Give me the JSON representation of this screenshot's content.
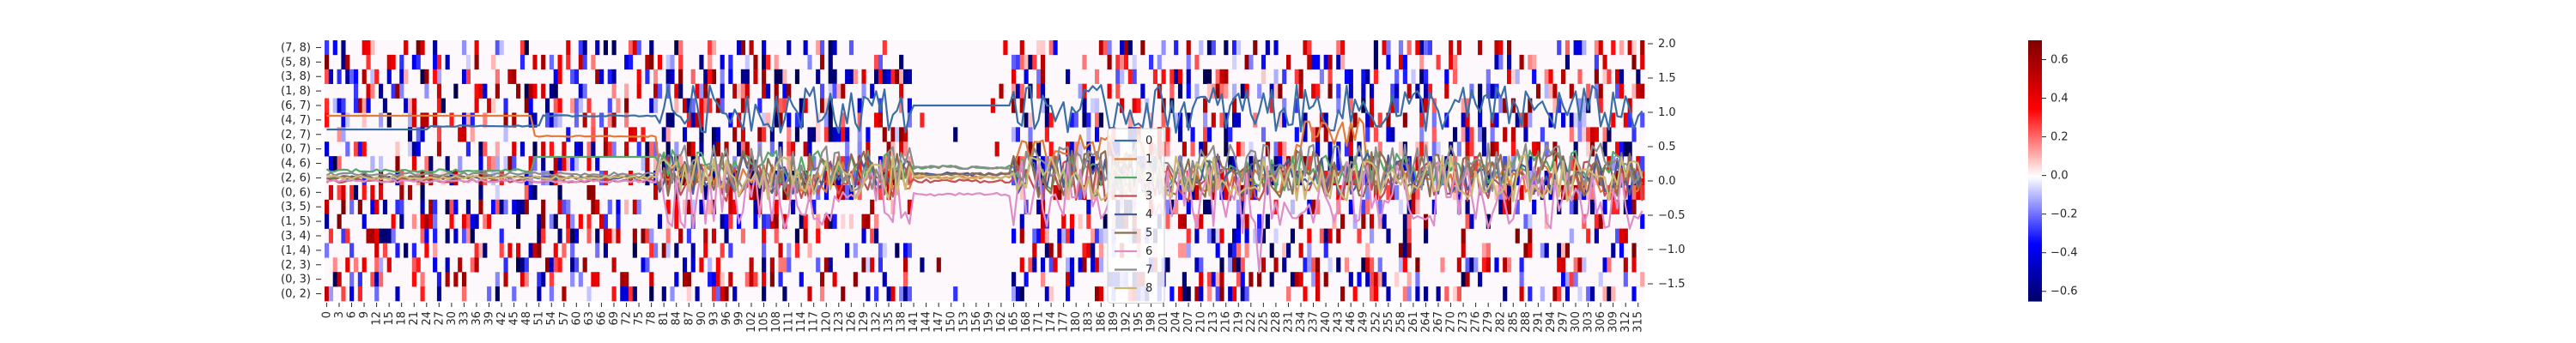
{
  "chart_data": {
    "type": "heatmap",
    "title": "",
    "xlabel": "",
    "ylabel": "",
    "rows": [
      "(7, 8)",
      "(5, 8)",
      "(3, 8)",
      "(1, 8)",
      "(6, 7)",
      "(4, 7)",
      "(2, 7)",
      "(0, 7)",
      "(4, 6)",
      "(2, 6)",
      "(0, 6)",
      "(3, 5)",
      "(1, 5)",
      "(3, 4)",
      "(1, 4)",
      "(2, 3)",
      "(0, 3)",
      "(0, 2)"
    ],
    "x_tick_labels": [
      "0",
      "3",
      "6",
      "9",
      "12",
      "15",
      "18",
      "21",
      "24",
      "27",
      "30",
      "33",
      "36",
      "39",
      "42",
      "45",
      "48",
      "51",
      "54",
      "57",
      "60",
      "63",
      "66",
      "69",
      "72",
      "75",
      "78",
      "81",
      "84",
      "87",
      "90",
      "93",
      "96",
      "99",
      "102",
      "105",
      "108",
      "111",
      "114",
      "117",
      "120",
      "123",
      "126",
      "129",
      "132",
      "135",
      "138",
      "141",
      "144",
      "147",
      "150",
      "153",
      "156",
      "159",
      "162",
      "165",
      "168",
      "171",
      "174",
      "177",
      "180",
      "183",
      "186",
      "189",
      "192",
      "195",
      "198",
      "201",
      "204",
      "207",
      "210",
      "213",
      "216",
      "219",
      "222",
      "225",
      "228",
      "231",
      "234",
      "237",
      "240",
      "243",
      "246",
      "249",
      "252",
      "255",
      "258",
      "261",
      "264",
      "267",
      "270",
      "273",
      "276",
      "279",
      "282",
      "285",
      "288",
      "291",
      "294",
      "297",
      "300",
      "303",
      "306",
      "309",
      "312",
      "315"
    ],
    "n_columns": 317,
    "heat_pattern": {
      "note": "sparse signed values per (row, column); white = 0",
      "columns_with_data": [
        [
          0,
          80
        ],
        [
          85,
          140
        ],
        [
          165,
          245
        ],
        [
          246,
          317
        ]
      ],
      "center_gap": [
        141,
        164
      ],
      "value_range": [
        -0.65,
        0.7
      ]
    },
    "colorbar": {
      "colormap": "seismic",
      "vmin": -0.65,
      "vmax": 0.7,
      "ticks": [
        0.6,
        0.4,
        0.2,
        0.0,
        -0.2,
        -0.4,
        -0.6
      ],
      "tick_labels": [
        "0.6",
        "0.4",
        "0.2",
        "0.0",
        "−0.2",
        "−0.4",
        "−0.6"
      ]
    },
    "line_axis": {
      "side": "right",
      "ylim": [
        -1.75,
        2.05
      ],
      "ticks": [
        2.0,
        1.5,
        1.0,
        0.5,
        0.0,
        -0.5,
        -1.0,
        -1.5
      ],
      "tick_labels": [
        "2.0",
        "1.5",
        "1.0",
        "0.5",
        "0.0",
        "−0.5",
        "−1.0",
        "−1.5"
      ]
    },
    "series": [
      {
        "name": "0",
        "color": "#3a6ea5",
        "level_pre": 1.05,
        "level_post": 1.05,
        "noise_post": 0.35,
        "style": "high"
      },
      {
        "name": "1",
        "color": "#e07b39",
        "level_pre": 0.95,
        "level_post": 0.05,
        "noise_post": 0.22,
        "style": "plateau"
      },
      {
        "name": "2",
        "color": "#55a868",
        "level_pre": 0.55,
        "level_post": 0.2,
        "noise_post": 0.25,
        "style": "plateau2"
      },
      {
        "name": "3",
        "color": "#c44e52",
        "level_pre": 0.0,
        "level_post": 0.0,
        "noise_post": 0.3,
        "style": "low"
      },
      {
        "name": "4",
        "color": "#4c5a9a",
        "level_pre": 0.05,
        "level_post": 0.1,
        "noise_post": 0.3,
        "style": "low"
      },
      {
        "name": "5",
        "color": "#8c6d4f",
        "level_pre": 0.05,
        "level_post": 0.1,
        "noise_post": 0.35,
        "style": "low"
      },
      {
        "name": "6",
        "color": "#dd8ec9",
        "level_pre": 0.0,
        "level_post": -0.2,
        "noise_post": 0.5,
        "style": "spiky"
      },
      {
        "name": "7",
        "color": "#8c8c8c",
        "level_pre": 0.1,
        "level_post": 0.2,
        "noise_post": 0.35,
        "style": "low"
      },
      {
        "name": "8",
        "color": "#ccb974",
        "level_pre": 0.05,
        "level_post": 0.05,
        "noise_post": 0.35,
        "style": "low"
      }
    ],
    "legend": {
      "placement": "center",
      "entries": [
        "0",
        "1",
        "2",
        "3",
        "4",
        "5",
        "6",
        "7",
        "8"
      ]
    },
    "grid": false
  }
}
